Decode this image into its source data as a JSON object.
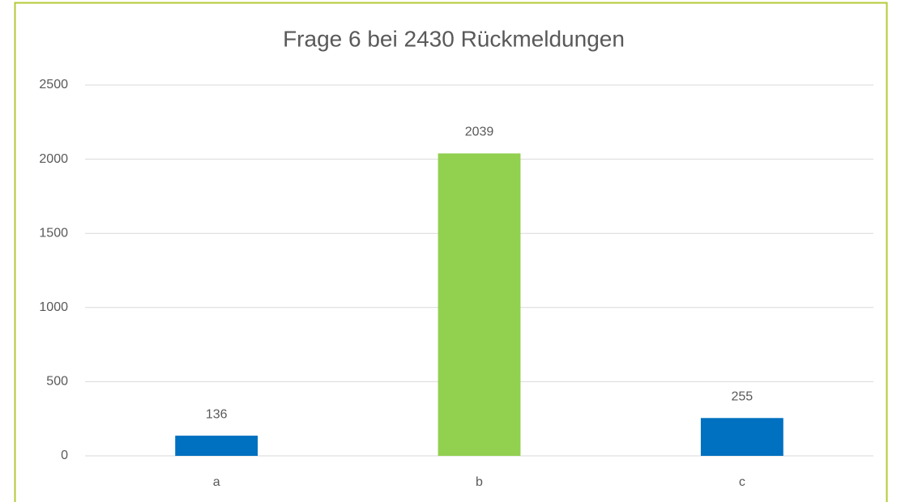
{
  "chart_data": {
    "type": "bar",
    "title": "Frage 6 bei 2430 Rückmeldungen",
    "categories": [
      "a",
      "b",
      "c"
    ],
    "values": [
      136,
      2039,
      255
    ],
    "colors": [
      "#0070c0",
      "#92d050",
      "#0070c0"
    ],
    "ylim": [
      0,
      2500
    ],
    "yticks": [
      0,
      500,
      1000,
      1500,
      2000,
      2500
    ],
    "grid": true
  }
}
